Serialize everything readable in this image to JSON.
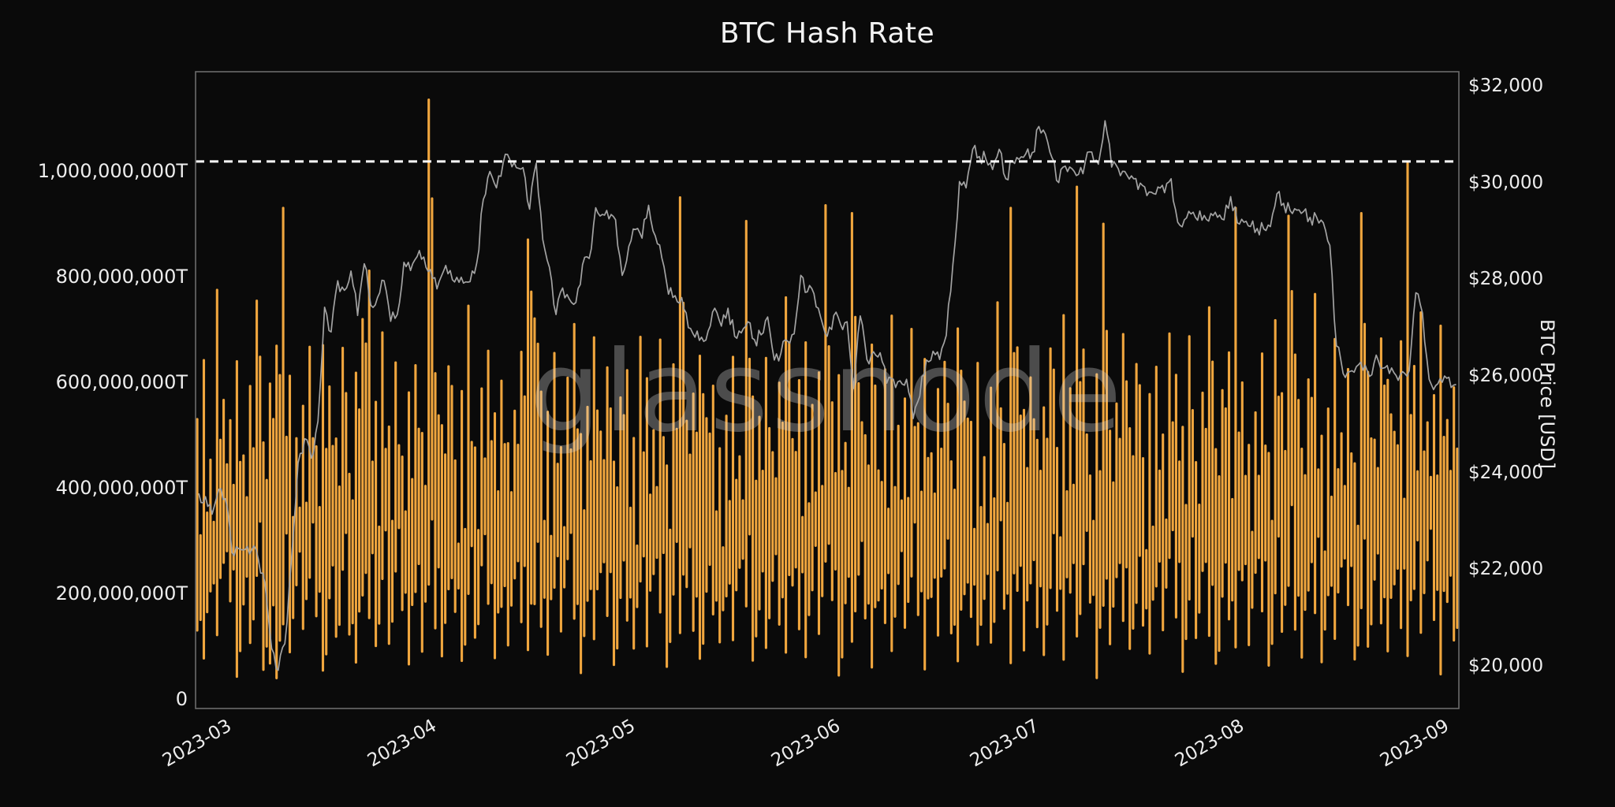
{
  "title": "BTC Hash Rate",
  "watermark": "glassnode",
  "colors": {
    "background": "#0a0a0a",
    "bars": "#F0A63E",
    "price_line": "#A3A3A3",
    "ath_dashed_line": "#FFFFFF",
    "plot_border": "#6B6B6B",
    "text": "#EDEDED",
    "watermark": "#D9D9D9"
  },
  "chart_data": {
    "type": "bar",
    "title": "BTC Hash Rate",
    "grid": false,
    "legend": "none",
    "x_start_date": "2023-02-26",
    "x_ticks": [
      {
        "label": "2023-03",
        "day": 3
      },
      {
        "label": "2023-04",
        "day": 34
      },
      {
        "label": "2023-05",
        "day": 64
      },
      {
        "label": "2023-06",
        "day": 95
      },
      {
        "label": "2023-07",
        "day": 125
      },
      {
        "label": "2023-08",
        "day": 156
      },
      {
        "label": "2023-09",
        "day": 187
      }
    ],
    "left_axis": {
      "label": "",
      "unit": "terahash",
      "ticks": [
        {
          "label": "0",
          "value": 0
        },
        {
          "label": "200,000,000T",
          "value": 200
        },
        {
          "label": "400,000,000T",
          "value": 400
        },
        {
          "label": "600,000,000T",
          "value": 600
        },
        {
          "label": "800,000,000T",
          "value": 800
        },
        {
          "label": "1,000,000,000T",
          "value": 1000
        }
      ],
      "range_millionsT": [
        -18,
        1188
      ]
    },
    "right_axis": {
      "label": "BTC Price [USD]",
      "ticks": [
        {
          "label": "$20,000",
          "value": 20000
        },
        {
          "label": "$22,000",
          "value": 22000
        },
        {
          "label": "$24,000",
          "value": 24000
        },
        {
          "label": "$26,000",
          "value": 26000
        },
        {
          "label": "$28,000",
          "value": 28000
        },
        {
          "label": "$30,000",
          "value": 30000
        },
        {
          "label": "$32,000",
          "value": 32000
        }
      ],
      "range_usd": [
        19120,
        32310
      ]
    },
    "ath_line_millionsT": 1018,
    "hash_rate_daily_high_millionsT": [
      560,
      640,
      480,
      770,
      590,
      520,
      660,
      450,
      610,
      740,
      500,
      580,
      680,
      930,
      620,
      470,
      560,
      640,
      480,
      700,
      590,
      520,
      660,
      450,
      610,
      740,
      800,
      580,
      680,
      530,
      620,
      470,
      560,
      640,
      480,
      1135,
      590,
      520,
      660,
      450,
      610,
      740,
      500,
      580,
      680,
      530,
      620,
      470,
      560,
      640,
      870,
      700,
      590,
      520,
      660,
      450,
      610,
      740,
      500,
      580,
      680,
      530,
      620,
      470,
      560,
      640,
      480,
      700,
      590,
      520,
      660,
      450,
      610,
      950,
      500,
      580,
      680,
      530,
      620,
      470,
      560,
      640,
      480,
      905,
      590,
      520,
      660,
      450,
      610,
      740,
      500,
      580,
      680,
      530,
      620,
      935,
      560,
      640,
      480,
      920,
      590,
      520,
      660,
      450,
      610,
      740,
      500,
      580,
      680,
      530,
      620,
      470,
      560,
      640,
      480,
      700,
      590,
      520,
      660,
      450,
      610,
      740,
      500,
      930,
      680,
      530,
      620,
      470,
      560,
      640,
      480,
      700,
      590,
      970,
      660,
      450,
      610,
      900,
      500,
      580,
      680,
      530,
      620,
      470,
      560,
      640,
      480,
      700,
      590,
      520,
      660,
      450,
      610,
      740,
      500,
      580,
      680,
      930,
      620,
      470,
      560,
      640,
      480,
      700,
      590,
      915,
      660,
      450,
      610,
      740,
      500,
      580,
      680,
      530,
      620,
      470,
      920,
      640,
      480,
      700,
      590,
      520,
      660,
      1015,
      610,
      740,
      500,
      580,
      680,
      530,
      620
    ],
    "hash_rate_daily_low_millionsT": [
      150,
      90,
      210,
      120,
      250,
      170,
      60,
      190,
      110,
      230,
      45,
      50,
      55,
      150,
      90,
      210,
      120,
      250,
      170,
      60,
      190,
      110,
      230,
      140,
      80,
      200,
      150,
      90,
      210,
      120,
      250,
      170,
      60,
      190,
      110,
      230,
      140,
      80,
      200,
      150,
      90,
      210,
      120,
      250,
      170,
      60,
      190,
      110,
      230,
      140,
      80,
      200,
      150,
      90,
      210,
      120,
      250,
      170,
      60,
      190,
      110,
      230,
      140,
      80,
      200,
      150,
      90,
      210,
      120,
      250,
      170,
      60,
      190,
      110,
      230,
      140,
      80,
      200,
      150,
      90,
      210,
      120,
      250,
      170,
      60,
      190,
      110,
      230,
      140,
      80,
      200,
      150,
      90,
      210,
      120,
      250,
      170,
      60,
      190,
      110,
      230,
      140,
      80,
      200,
      150,
      90,
      210,
      120,
      250,
      170,
      60,
      190,
      110,
      230,
      140,
      80,
      200,
      150,
      90,
      210,
      120,
      250,
      170,
      60,
      190,
      110,
      230,
      140,
      80,
      200,
      150,
      90,
      210,
      120,
      250,
      170,
      60,
      190,
      110,
      230,
      140,
      80,
      200,
      150,
      90,
      210,
      120,
      250,
      170,
      60,
      190,
      110,
      230,
      140,
      80,
      200,
      150,
      90,
      210,
      120,
      250,
      170,
      60,
      190,
      110,
      230,
      140,
      80,
      200,
      150,
      90,
      210,
      120,
      250,
      170,
      60,
      190,
      110,
      230,
      140,
      80,
      200,
      150,
      90,
      210,
      120,
      250,
      170,
      60,
      190,
      110
    ],
    "btc_price_daily_usd": [
      23560,
      23500,
      23140,
      23650,
      23460,
      22350,
      22430,
      22410,
      22410,
      22200,
      21700,
      20360,
      19910,
      20460,
      22200,
      24200,
      24700,
      24300,
      25060,
      27420,
      26910,
      27970,
      27770,
      28170,
      27250,
      28320,
      27460,
      27620,
      27970,
      27130,
      27270,
      28350,
      28180,
      28470,
      28460,
      28200,
      27800,
      28170,
      28180,
      28040,
      27920,
      27950,
      28330,
      29650,
      30230,
      29890,
      30400,
      30480,
      30310,
      30310,
      29450,
      30400,
      28820,
      28250,
      27270,
      27820,
      27590,
      27520,
      28300,
      28430,
      29480,
      29340,
      29250,
      29230,
      28080,
      28680,
      29030,
      28850,
      29530,
      28900,
      28440,
      27690,
      27660,
      27620,
      27000,
      26800,
      26800,
      26930,
      27400,
      27030,
      27400,
      26820,
      26890,
      27120,
      26750,
      26850,
      27220,
      26330,
      26470,
      26720,
      26870,
      28080,
      27740,
      27700,
      27220,
      26820,
      27250,
      27070,
      27120,
      25740,
      27240,
      26340,
      26500,
      26480,
      25850,
      25930,
      25900,
      25930,
      25120,
      25580,
      26330,
      26510,
      26340,
      26840,
      28310,
      30020,
      29890,
      30690,
      30540,
      30480,
      30270,
      30690,
      30080,
      30450,
      30480,
      30590,
      30620,
      31160,
      31000,
      30510,
      30000,
      30340,
      30290,
      30170,
      30410,
      30630,
      30380,
      31280,
      30320,
      30290,
      30230,
      30140,
      29860,
      29910,
      29800,
      29910,
      29790,
      30080,
      29180,
      29230,
      29350,
      29220,
      29320,
      29360,
      29280,
      29230,
      29710,
      29170,
      29180,
      29090,
      29050,
      29040,
      29090,
      29770,
      29570,
      29420,
      29430,
      29400,
      29280,
      29280,
      29170,
      28700,
      26620,
      26050,
      26090,
      26190,
      26120,
      25990,
      26430,
      26160,
      26050,
      26010,
      26090,
      26110,
      27720,
      27300,
      25930,
      25800,
      25870,
      25970,
      25820
    ]
  }
}
